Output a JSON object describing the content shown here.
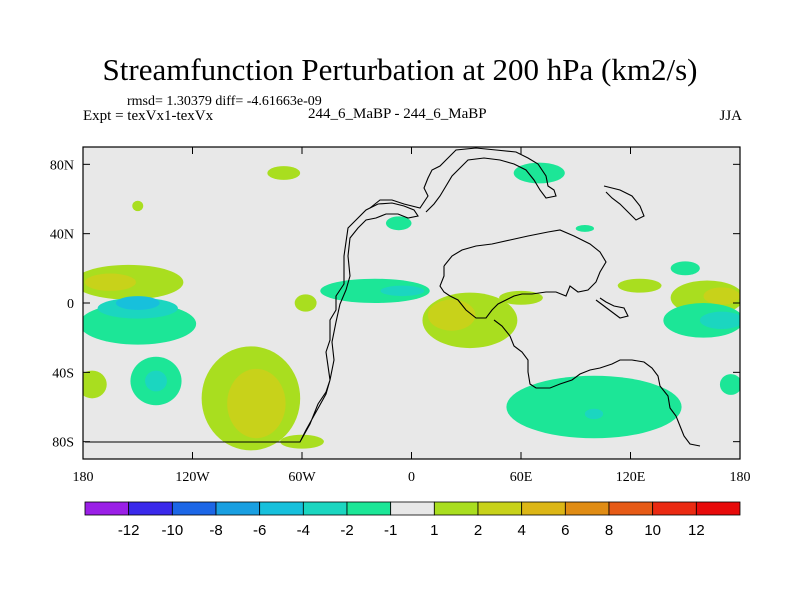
{
  "header": {
    "title": "Streamfunction Perturbation at 200 hPa (km2/s)",
    "stats": "rmsd= 1.30379 diff= -4.61663e-09",
    "experiment": "Expt = texVx1-texVx",
    "case": "244_6_MaBP - 244_6_MaBP",
    "season": "JJA"
  },
  "chart_data": {
    "type": "heatmap",
    "title": "Streamfunction Perturbation at 200 hPa (km2/s)",
    "units": "km2/s",
    "xlabel": "",
    "ylabel": "",
    "xlim": [
      -180,
      180
    ],
    "ylim": [
      -90,
      90
    ],
    "x_ticks": [
      {
        "value": -180,
        "label": "180"
      },
      {
        "value": -120,
        "label": "120W"
      },
      {
        "value": -60,
        "label": "60W"
      },
      {
        "value": 0,
        "label": "0"
      },
      {
        "value": 60,
        "label": "60E"
      },
      {
        "value": 120,
        "label": "120E"
      },
      {
        "value": 180,
        "label": "180"
      }
    ],
    "y_ticks": [
      {
        "value": 80,
        "label": "80N"
      },
      {
        "value": 40,
        "label": "40N"
      },
      {
        "value": 0,
        "label": "0"
      },
      {
        "value": -40,
        "label": "40S"
      },
      {
        "value": -80,
        "label": "80S"
      }
    ],
    "colorbar": {
      "labels": [
        "-12",
        "-10",
        "-8",
        "-6",
        "-4",
        "-2",
        "-1",
        "1",
        "2",
        "4",
        "6",
        "8",
        "10",
        "12"
      ],
      "colors": [
        "#9a1fe6",
        "#3a29ea",
        "#1c66e6",
        "#199fe1",
        "#17c0dc",
        "#1bd6c0",
        "#1ce697",
        "#e8e8e8",
        "#a9de1f",
        "#c8d21a",
        "#dcb616",
        "#e08c14",
        "#e65a16",
        "#ea2a12",
        "#e70a0a"
      ]
    },
    "background_color": "#e8e8e8",
    "features": [
      {
        "level": "1 to 2",
        "color": "#a9de1f",
        "lon": -155,
        "lat": 12,
        "rlon": 30,
        "rlat": 10
      },
      {
        "level": "2 to 4",
        "color": "#c8d21a",
        "lon": -165,
        "lat": 12,
        "rlon": 14,
        "rlat": 5
      },
      {
        "level": "1 to 2",
        "color": "#a9de1f",
        "lon": -175,
        "lat": -47,
        "rlon": 8,
        "rlat": 8
      },
      {
        "level": "1 to 2",
        "color": "#a9de1f",
        "lon": -150,
        "lat": 56,
        "rlon": 3,
        "rlat": 3
      },
      {
        "level": "1 to 2",
        "color": "#a9de1f",
        "lon": -70,
        "lat": 75,
        "rlon": 9,
        "rlat": 4
      },
      {
        "level": "1 to 2",
        "color": "#a9de1f",
        "lon": -88,
        "lat": -55,
        "rlon": 27,
        "rlat": 30
      },
      {
        "level": "2 to 4",
        "color": "#c8d21a",
        "lon": -85,
        "lat": -58,
        "rlon": 16,
        "rlat": 20
      },
      {
        "level": "1 to 2",
        "color": "#a9de1f",
        "lon": -60,
        "lat": -80,
        "rlon": 12,
        "rlat": 4
      },
      {
        "level": "1 to 2",
        "color": "#a9de1f",
        "lon": -58,
        "lat": 0,
        "rlon": 6,
        "rlat": 5
      },
      {
        "level": "1 to 2",
        "color": "#a9de1f",
        "lon": 32,
        "lat": -10,
        "rlon": 26,
        "rlat": 16
      },
      {
        "level": "2 to 4",
        "color": "#c8d21a",
        "lon": 22,
        "lat": -7,
        "rlon": 13,
        "rlat": 9
      },
      {
        "level": "1 to 2",
        "color": "#a9de1f",
        "lon": 60,
        "lat": 3,
        "rlon": 12,
        "rlat": 4
      },
      {
        "level": "1 to 2",
        "color": "#a9de1f",
        "lon": 162,
        "lat": 3,
        "rlon": 20,
        "rlat": 10
      },
      {
        "level": "2 to 4",
        "color": "#c8d21a",
        "lon": 170,
        "lat": 4,
        "rlon": 10,
        "rlat": 5
      },
      {
        "level": "1 to 2",
        "color": "#a9de1f",
        "lon": 125,
        "lat": 10,
        "rlon": 12,
        "rlat": 4
      },
      {
        "level": "-2 to -1",
        "color": "#1ce697",
        "lon": -150,
        "lat": -12,
        "rlon": 32,
        "rlat": 12
      },
      {
        "level": "-4 to -2",
        "color": "#1bd6c0",
        "lon": -150,
        "lat": -3,
        "rlon": 22,
        "rlat": 6
      },
      {
        "level": "-6 to -4",
        "color": "#17c0dc",
        "lon": -150,
        "lat": 0,
        "rlon": 12,
        "rlat": 4
      },
      {
        "level": "-2 to -1",
        "color": "#1ce697",
        "lon": -140,
        "lat": -45,
        "rlon": 14,
        "rlat": 14
      },
      {
        "level": "-4 to -2",
        "color": "#1bd6c0",
        "lon": -140,
        "lat": -45,
        "rlon": 6,
        "rlat": 6
      },
      {
        "level": "-2 to -1",
        "color": "#1ce697",
        "lon": -20,
        "lat": 7,
        "rlon": 30,
        "rlat": 7
      },
      {
        "level": "-4 to -2",
        "color": "#1bd6c0",
        "lon": -5,
        "lat": 7,
        "rlon": 12,
        "rlat": 3
      },
      {
        "level": "-2 to -1",
        "color": "#1ce697",
        "lon": -7,
        "lat": 46,
        "rlon": 7,
        "rlat": 4
      },
      {
        "level": "-2 to -1",
        "color": "#1ce697",
        "lon": 70,
        "lat": 75,
        "rlon": 14,
        "rlat": 6
      },
      {
        "level": "-2 to -1",
        "color": "#1ce697",
        "lon": 95,
        "lat": 43,
        "rlon": 5,
        "rlat": 2
      },
      {
        "level": "-2 to -1",
        "color": "#1ce697",
        "lon": 150,
        "lat": 20,
        "rlon": 8,
        "rlat": 4
      },
      {
        "level": "-2 to -1",
        "color": "#1ce697",
        "lon": 100,
        "lat": -60,
        "rlon": 48,
        "rlat": 18
      },
      {
        "level": "-4 to -2",
        "color": "#1bd6c0",
        "lon": 100,
        "lat": -64,
        "rlon": 5,
        "rlat": 3
      },
      {
        "level": "-2 to -1",
        "color": "#1ce697",
        "lon": 160,
        "lat": -10,
        "rlon": 22,
        "rlat": 10
      },
      {
        "level": "-4 to -2",
        "color": "#1bd6c0",
        "lon": 170,
        "lat": -10,
        "rlon": 12,
        "rlat": 5
      },
      {
        "level": "-2 to -1",
        "color": "#1ce697",
        "lon": 175,
        "lat": -47,
        "rlon": 6,
        "rlat": 6
      }
    ]
  }
}
